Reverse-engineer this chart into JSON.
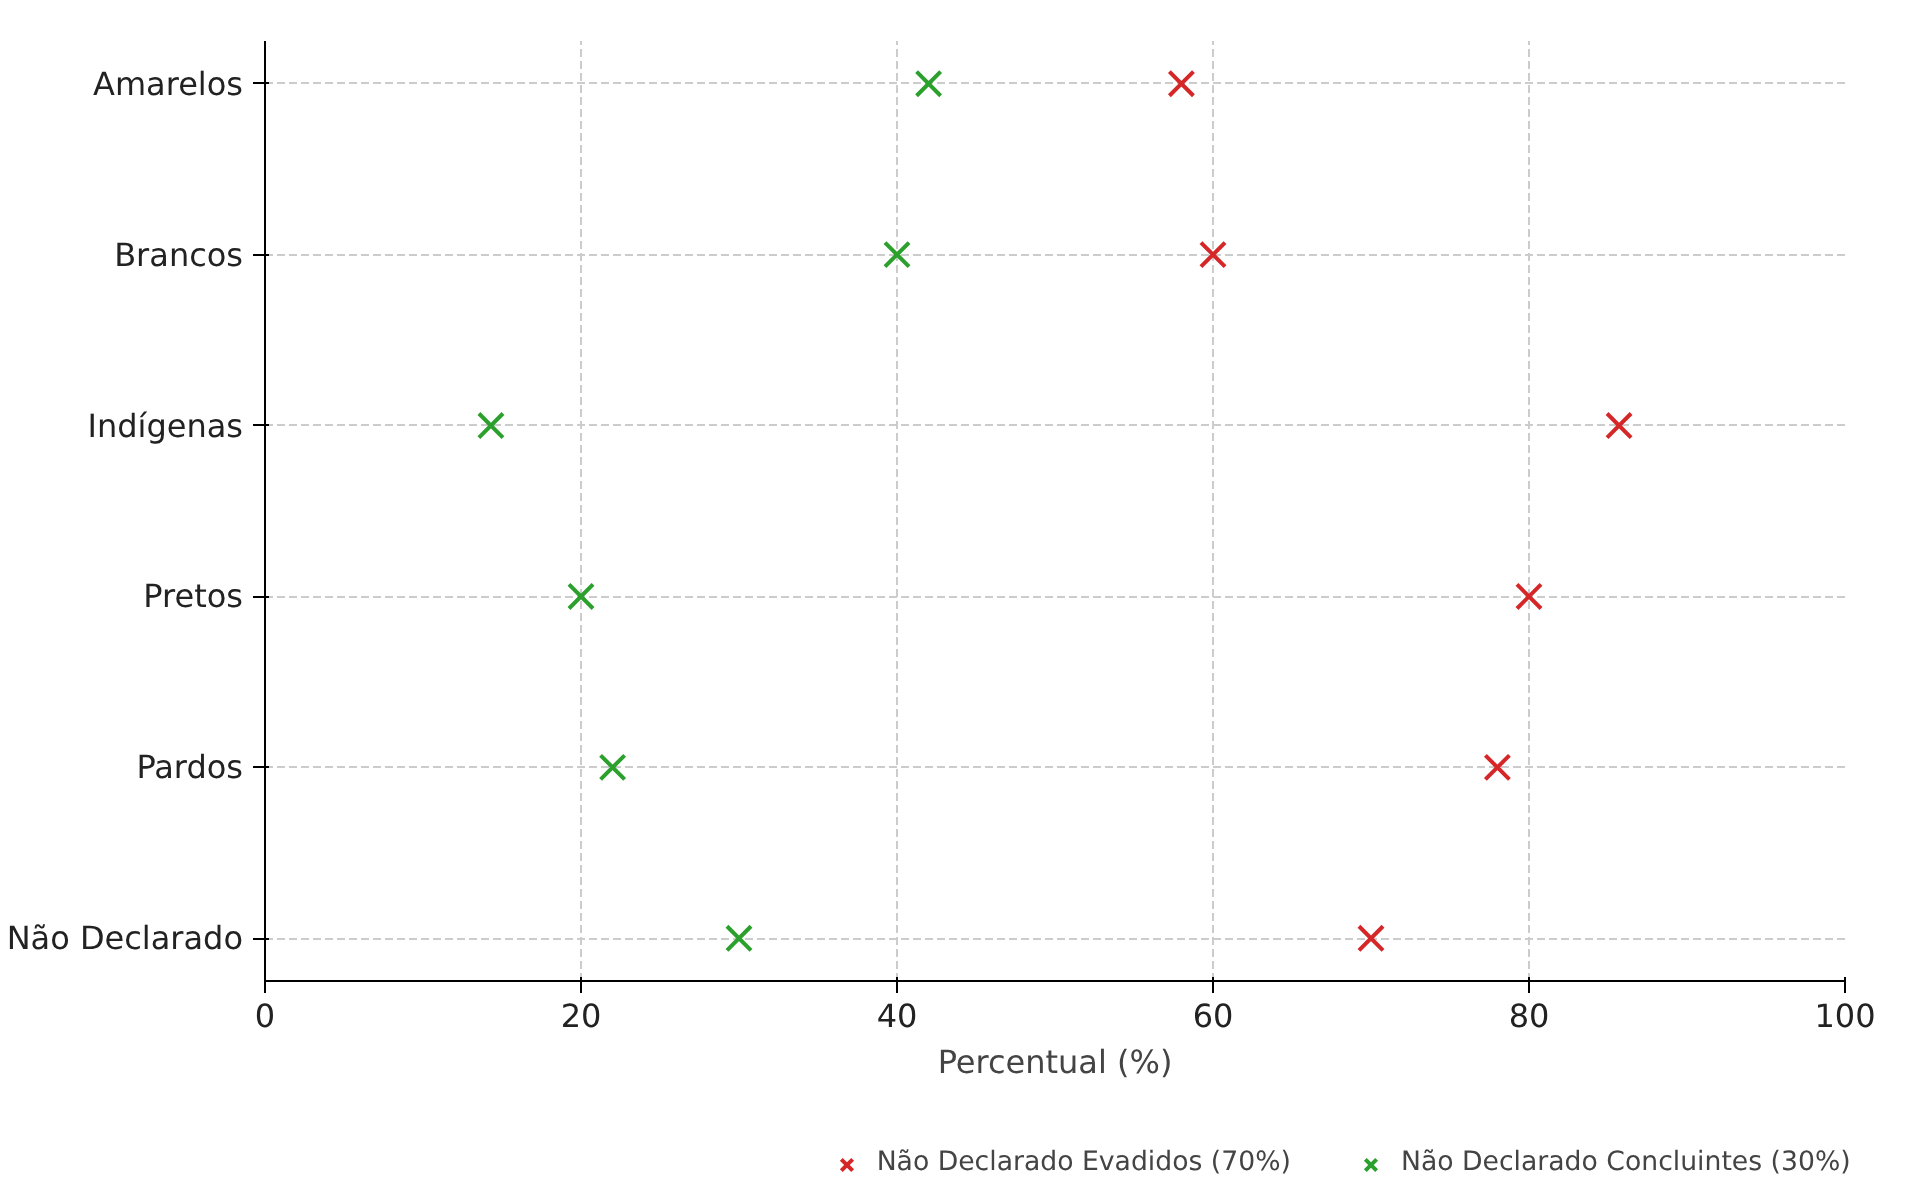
{
  "chart_data": {
    "type": "scatter",
    "orientation": "horizontal",
    "xlabel": "Percentual (%)",
    "categories": [
      "Amarelos",
      "Brancos",
      "Indígenas",
      "Pretos",
      "Pardos",
      "Não Declarado"
    ],
    "xlim": [
      0,
      100
    ],
    "xticks": [
      0,
      20,
      40,
      60,
      80,
      100
    ],
    "grid": true,
    "legend": "bottom",
    "marker": "cross",
    "series": [
      {
        "name": "Não Declarado Evadidos (70%)",
        "color": "#d62728",
        "values": [
          58,
          60,
          85.7,
          80,
          78,
          70
        ]
      },
      {
        "name": "Não Declarado Concluintes (30%)",
        "color": "#2ca02c",
        "values": [
          42,
          40,
          14.3,
          20,
          22,
          30
        ]
      }
    ]
  }
}
